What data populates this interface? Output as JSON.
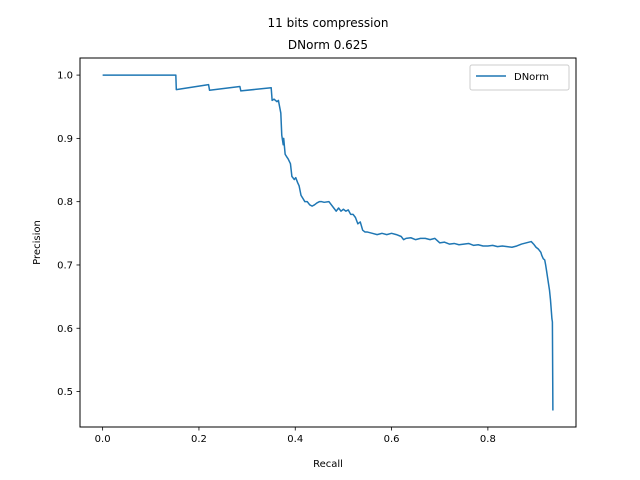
{
  "chart_data": {
    "type": "line",
    "title": "11 bits compression",
    "subtitle": "DNorm 0.625",
    "xlabel": "Recall",
    "ylabel": "Precision",
    "xlim": [
      -0.047,
      0.983
    ],
    "ylim": [
      0.444,
      1.027
    ],
    "xticks": [
      0.0,
      0.2,
      0.4,
      0.6,
      0.8
    ],
    "xtick_labels": [
      "0.0",
      "0.2",
      "0.4",
      "0.6",
      "0.8"
    ],
    "yticks": [
      0.5,
      0.6,
      0.7,
      0.8,
      0.9,
      1.0
    ],
    "ytick_labels": [
      "0.5",
      "0.6",
      "0.7",
      "0.8",
      "0.9",
      "1.0"
    ],
    "grid": false,
    "legend_position": "top-right",
    "series": [
      {
        "name": "DNorm",
        "color": "#1f77b4",
        "x": [
          0.0,
          0.152,
          0.153,
          0.22,
          0.222,
          0.285,
          0.287,
          0.35,
          0.352,
          0.356,
          0.362,
          0.365,
          0.37,
          0.372,
          0.375,
          0.376,
          0.379,
          0.383,
          0.385,
          0.39,
          0.393,
          0.398,
          0.401,
          0.405,
          0.408,
          0.412,
          0.416,
          0.42,
          0.425,
          0.43,
          0.435,
          0.44,
          0.445,
          0.45,
          0.455,
          0.46,
          0.47,
          0.48,
          0.485,
          0.49,
          0.495,
          0.5,
          0.505,
          0.51,
          0.515,
          0.52,
          0.525,
          0.53,
          0.535,
          0.54,
          0.545,
          0.55,
          0.56,
          0.57,
          0.58,
          0.59,
          0.6,
          0.61,
          0.62,
          0.625,
          0.63,
          0.64,
          0.65,
          0.66,
          0.67,
          0.68,
          0.69,
          0.7,
          0.71,
          0.72,
          0.73,
          0.74,
          0.75,
          0.76,
          0.77,
          0.78,
          0.79,
          0.8,
          0.81,
          0.82,
          0.83,
          0.84,
          0.85,
          0.86,
          0.87,
          0.88,
          0.89,
          0.895,
          0.9,
          0.905,
          0.91,
          0.912,
          0.915,
          0.918,
          0.92,
          0.922,
          0.924,
          0.926,
          0.928,
          0.93,
          0.931,
          0.932,
          0.933,
          0.934,
          0.935
        ],
        "y": [
          1.0,
          1.0,
          0.977,
          0.985,
          0.976,
          0.982,
          0.975,
          0.98,
          0.96,
          0.962,
          0.958,
          0.96,
          0.94,
          0.905,
          0.89,
          0.9,
          0.875,
          0.87,
          0.868,
          0.86,
          0.84,
          0.835,
          0.838,
          0.83,
          0.825,
          0.81,
          0.805,
          0.8,
          0.8,
          0.795,
          0.793,
          0.795,
          0.798,
          0.8,
          0.8,
          0.799,
          0.8,
          0.79,
          0.785,
          0.79,
          0.785,
          0.788,
          0.785,
          0.787,
          0.78,
          0.78,
          0.775,
          0.765,
          0.768,
          0.755,
          0.752,
          0.752,
          0.75,
          0.748,
          0.75,
          0.748,
          0.75,
          0.748,
          0.745,
          0.74,
          0.742,
          0.743,
          0.74,
          0.742,
          0.742,
          0.74,
          0.742,
          0.735,
          0.736,
          0.733,
          0.734,
          0.732,
          0.733,
          0.734,
          0.731,
          0.732,
          0.73,
          0.73,
          0.731,
          0.729,
          0.73,
          0.729,
          0.728,
          0.73,
          0.733,
          0.735,
          0.737,
          0.733,
          0.728,
          0.725,
          0.72,
          0.715,
          0.71,
          0.708,
          0.7,
          0.69,
          0.68,
          0.67,
          0.66,
          0.645,
          0.635,
          0.625,
          0.615,
          0.61,
          0.47
        ]
      }
    ]
  }
}
